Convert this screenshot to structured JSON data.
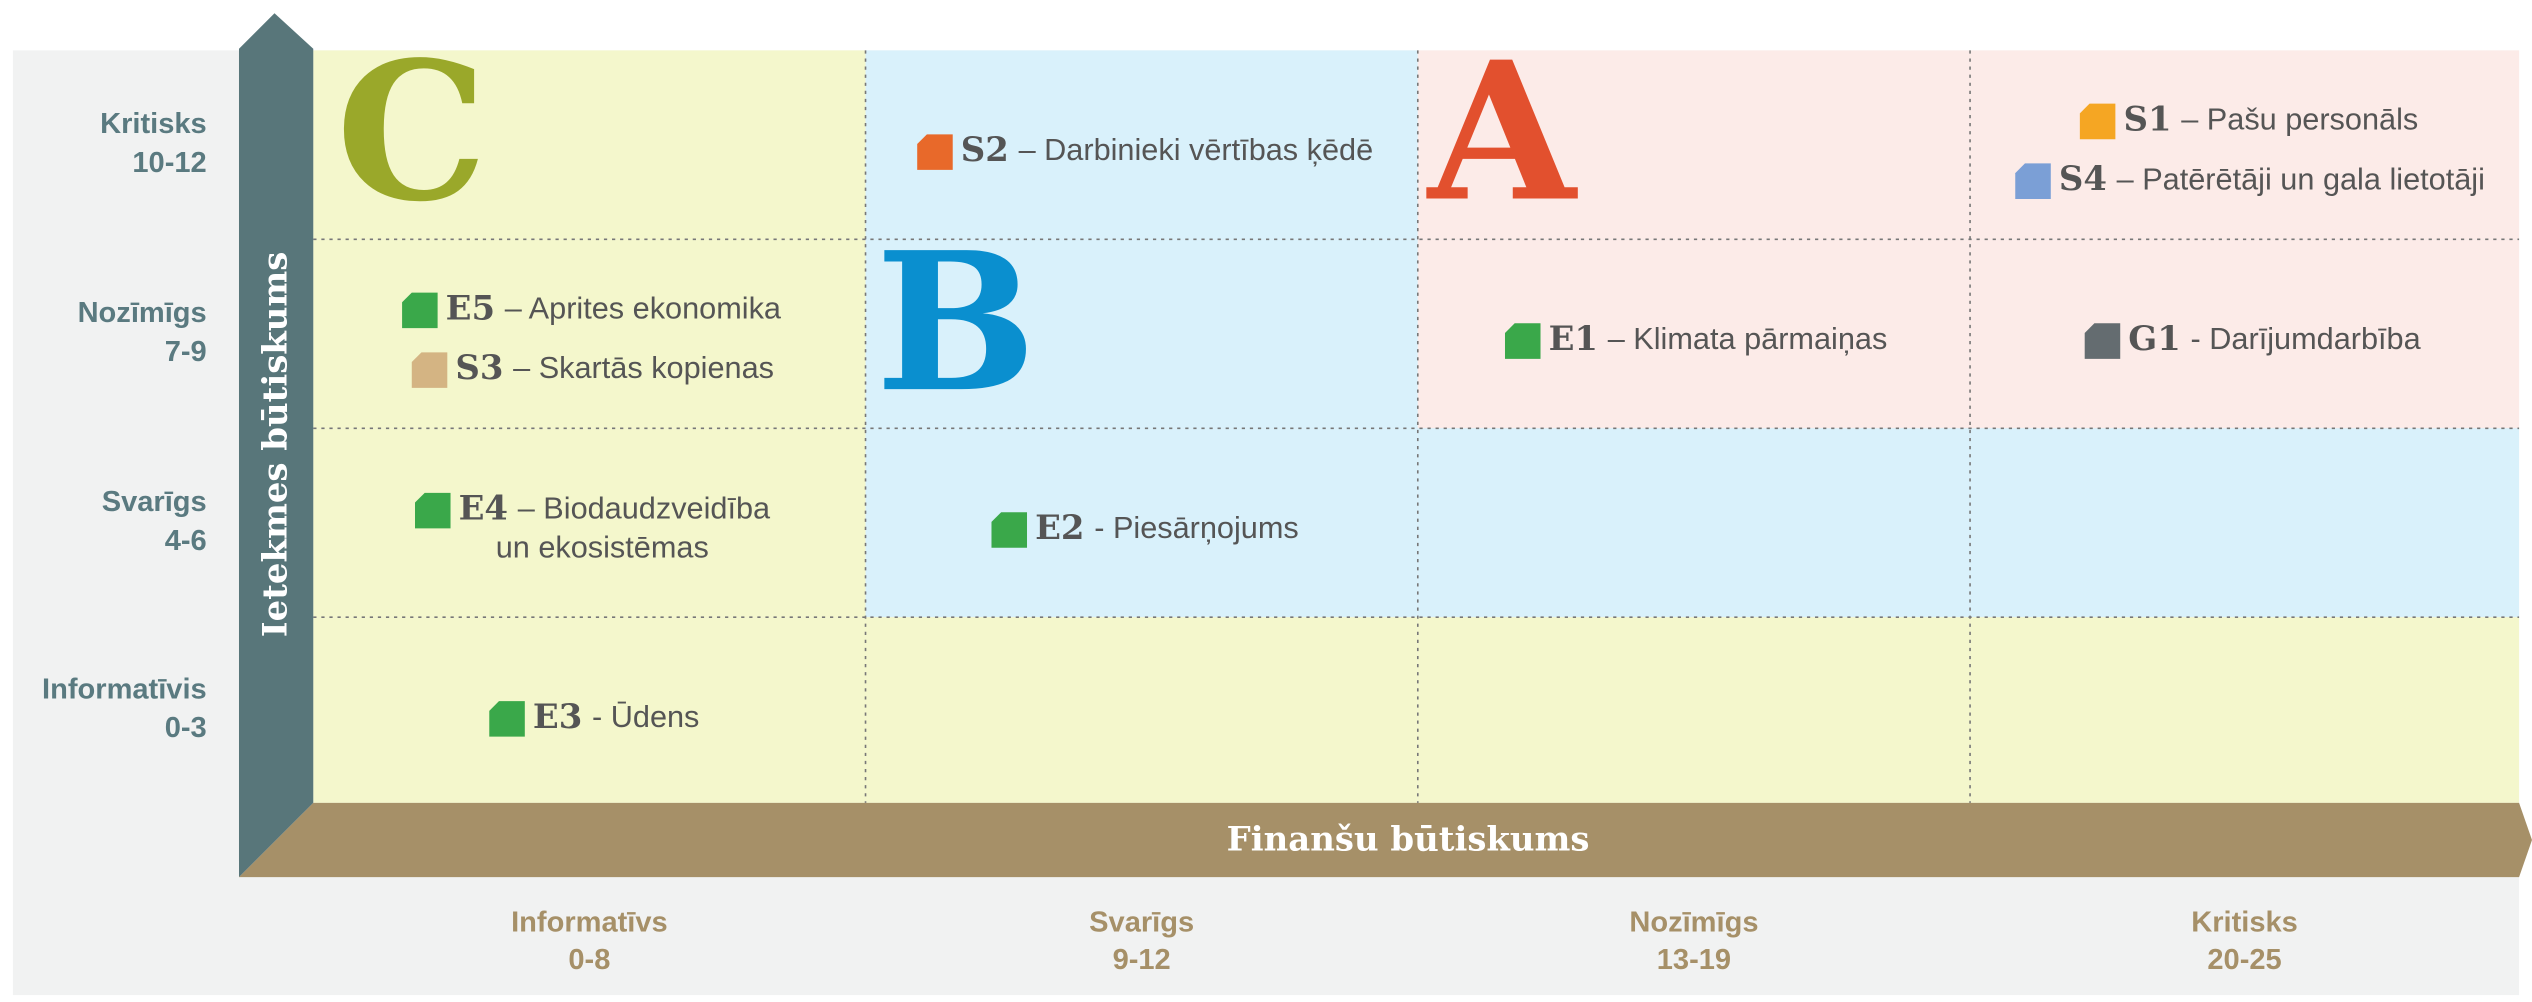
{
  "y_axis": {
    "title": "Ietekmes būtiskums",
    "rows": [
      {
        "name": "Kritisks",
        "range": "10-12"
      },
      {
        "name": "Nozīmīgs",
        "range": "7-9"
      },
      {
        "name": "Svarīgs",
        "range": "4-6"
      },
      {
        "name": "Informatīvis",
        "range": "0-3"
      }
    ]
  },
  "x_axis": {
    "title": "Finanšu būtiskums",
    "columns": [
      {
        "name": "Informatīvs",
        "range": "0-8"
      },
      {
        "name": "Svarīgs",
        "range": "9-12"
      },
      {
        "name": "Nozīmīgs",
        "range": "13-19"
      },
      {
        "name": "Kritisks",
        "range": "20-25"
      }
    ]
  },
  "zones": [
    {
      "letter": "C",
      "color": "#9aa82a"
    },
    {
      "letter": "B",
      "color": "#0a8fcf"
    },
    {
      "letter": "A",
      "color": "#e2502e"
    }
  ],
  "items": [
    {
      "code": "E5",
      "label": [
        "– Aprites ekonomika"
      ],
      "color": "#3aa84a"
    },
    {
      "code": "S3",
      "label": [
        "– Skartās kopienas"
      ],
      "color": "#d4b483"
    },
    {
      "code": "E4",
      "label": [
        "– Biodaudzveidība",
        "un ekosistēmas"
      ],
      "color": "#3aa84a"
    },
    {
      "code": "E3",
      "label": [
        "- Ūdens"
      ],
      "color": "#3aa84a"
    },
    {
      "code": "S2",
      "label": [
        "– Darbinieki vērtības ķēdē"
      ],
      "color": "#e8692a"
    },
    {
      "code": "E2",
      "label": [
        "- Piesārņojums"
      ],
      "color": "#3aa84a"
    },
    {
      "code": "E1",
      "label": [
        "– Klimata pārmaiņas"
      ],
      "color": "#3aa84a"
    },
    {
      "code": "S1",
      "label": [
        "– Pašu personāls"
      ],
      "color": "#f5a623"
    },
    {
      "code": "S4",
      "label": [
        "– Patērētāji un gala lietotāji"
      ],
      "color": "#7b9fd6"
    },
    {
      "code": "G1",
      "label": [
        "- Darījumdarbība"
      ],
      "color": "#646c70"
    }
  ]
}
